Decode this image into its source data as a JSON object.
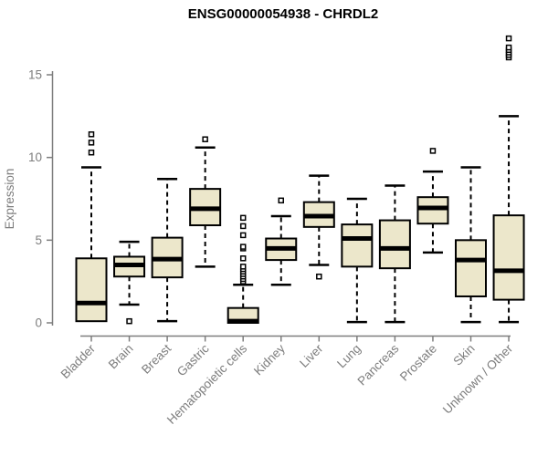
{
  "title": "ENSG00000054938 - CHRDL2",
  "chart_data": {
    "type": "boxplot",
    "title": "ENSG00000054938 - CHRDL2",
    "xlabel": "",
    "ylabel": "Expression",
    "ylim": [
      0,
      15
    ],
    "yticks": [
      0,
      5,
      10,
      15
    ],
    "grid": false,
    "legend": false,
    "categories": [
      "Bladder",
      "Brain",
      "Breast",
      "Gastric",
      "Hematopoietic cells",
      "Kidney",
      "Liver",
      "Lung",
      "Pancreas",
      "Prostate",
      "Skin",
      "Unknown / Other"
    ],
    "series": [
      {
        "name": "Bladder",
        "whisker_low": 0.1,
        "q1": 0.1,
        "median": 1.2,
        "q3": 3.9,
        "whisker_high": 9.4,
        "outliers": [
          10.3,
          10.9,
          11.4
        ]
      },
      {
        "name": "Brain",
        "whisker_low": 1.1,
        "q1": 2.8,
        "median": 3.5,
        "q3": 4.0,
        "whisker_high": 4.9,
        "outliers": [
          0.1
        ]
      },
      {
        "name": "Breast",
        "whisker_low": 0.1,
        "q1": 2.75,
        "median": 3.85,
        "q3": 5.15,
        "whisker_high": 8.7,
        "outliers": []
      },
      {
        "name": "Gastric",
        "whisker_low": 3.4,
        "q1": 5.9,
        "median": 6.9,
        "q3": 8.1,
        "whisker_high": 10.6,
        "outliers": [
          11.1
        ]
      },
      {
        "name": "Hematopoietic cells",
        "whisker_low": 0.0,
        "q1": 0.0,
        "median": 0.1,
        "q3": 0.9,
        "whisker_high": 2.3,
        "outliers": [
          2.5,
          2.65,
          2.8,
          2.95,
          3.1,
          3.25,
          3.4,
          3.9,
          4.5,
          4.6,
          5.3,
          5.85,
          6.35
        ]
      },
      {
        "name": "Kidney",
        "whisker_low": 2.3,
        "q1": 3.8,
        "median": 4.5,
        "q3": 5.1,
        "whisker_high": 6.45,
        "outliers": [
          7.4
        ]
      },
      {
        "name": "Liver",
        "whisker_low": 3.5,
        "q1": 5.8,
        "median": 6.45,
        "q3": 7.3,
        "whisker_high": 8.9,
        "outliers": [
          2.8
        ]
      },
      {
        "name": "Lung",
        "whisker_low": 0.05,
        "q1": 3.4,
        "median": 5.1,
        "q3": 5.95,
        "whisker_high": 7.5,
        "outliers": []
      },
      {
        "name": "Pancreas",
        "whisker_low": 0.05,
        "q1": 3.3,
        "median": 4.5,
        "q3": 6.2,
        "whisker_high": 8.3,
        "outliers": []
      },
      {
        "name": "Prostate",
        "whisker_low": 4.25,
        "q1": 6.0,
        "median": 6.95,
        "q3": 7.6,
        "whisker_high": 9.15,
        "outliers": [
          10.4
        ]
      },
      {
        "name": "Skin",
        "whisker_low": 0.05,
        "q1": 1.6,
        "median": 3.8,
        "q3": 5.0,
        "whisker_high": 9.4,
        "outliers": []
      },
      {
        "name": "Unknown / Other",
        "whisker_low": 0.05,
        "q1": 1.4,
        "median": 3.15,
        "q3": 6.5,
        "whisker_high": 12.5,
        "outliers": [
          16.05,
          16.2,
          16.35,
          16.5,
          16.65,
          17.2
        ]
      }
    ],
    "colors": {
      "box_fill": "#ECE7CB",
      "box_stroke": "#000000",
      "median": "#000000",
      "whisker": "#000000",
      "outlier_fill": "#ffffff",
      "axis": "#7d7d7d",
      "title": "#000000",
      "background": "#ffffff"
    }
  }
}
